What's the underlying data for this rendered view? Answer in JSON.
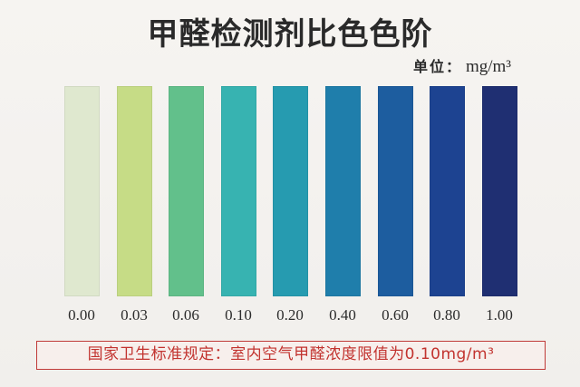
{
  "title": "甲醛检测剂比色色阶",
  "unit": {
    "label": "单位：",
    "value": "mg/m³"
  },
  "swatches": [
    {
      "label": "0.00",
      "color": "#dfe8cf"
    },
    {
      "label": "0.03",
      "color": "#c6dc86"
    },
    {
      "label": "0.06",
      "color": "#62c08b"
    },
    {
      "label": "0.10",
      "color": "#37b3b1"
    },
    {
      "label": "0.20",
      "color": "#269bb0"
    },
    {
      "label": "0.40",
      "color": "#1f7eab"
    },
    {
      "label": "0.60",
      "color": "#1d5d9f"
    },
    {
      "label": "0.80",
      "color": "#1d4391"
    },
    {
      "label": "1.00",
      "color": "#1f2f72"
    }
  ],
  "note": "国家卫生标准规定：室内空气甲醛浓度限值为0.10mg/m³"
}
